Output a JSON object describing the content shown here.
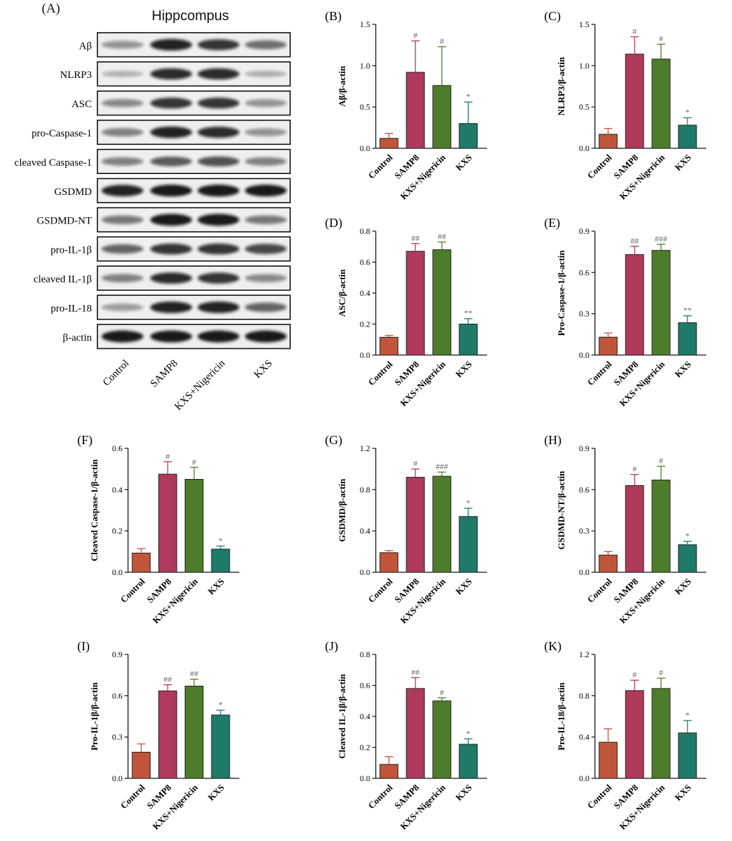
{
  "figure": {
    "blot_panel_label": "(A)",
    "blot_title": "Hippcompus",
    "blot_rows": [
      "Aβ",
      "NLRP3",
      "ASC",
      "pro-Caspase-1",
      "cleaved Caspase-1",
      "GSDMD",
      "GSDMD-NT",
      "pro-IL-1β",
      "cleaved IL-1β",
      "pro-IL-18",
      "β-actin"
    ],
    "blot_groups": [
      "Control",
      "SAMP8",
      "KXS+Nigericin",
      "KXS"
    ]
  },
  "colors": {
    "Control": "#c0553a",
    "SAMP8": "#b03a5b",
    "KXS+Nigericin": "#4d7c2a",
    "KXS": "#1f7a6a",
    "marker": "#666666"
  },
  "chart_data": [
    {
      "panel": "(B)",
      "type": "bar",
      "categories": [
        "Control",
        "SAMP8",
        "KXS+Nigericin",
        "KXS"
      ],
      "values": [
        0.12,
        0.92,
        0.76,
        0.3
      ],
      "errors": [
        0.06,
        0.38,
        0.47,
        0.26
      ],
      "markers": [
        "",
        "#",
        "#",
        "*"
      ],
      "ylabel": "Aβ/β-actin",
      "ylim": [
        0,
        1.5
      ],
      "yticks": [
        "0.0",
        "0.5",
        "1.0",
        "1.5"
      ]
    },
    {
      "panel": "(C)",
      "type": "bar",
      "categories": [
        "Control",
        "SAMP8",
        "KXS+Nigericin",
        "KXS"
      ],
      "values": [
        0.17,
        1.14,
        1.08,
        0.28
      ],
      "errors": [
        0.07,
        0.21,
        0.18,
        0.09
      ],
      "markers": [
        "",
        "#",
        "#",
        "*"
      ],
      "ylabel": "NLRP3/β-actin",
      "ylim": [
        0,
        1.5
      ],
      "yticks": [
        "0.0",
        "0.5",
        "1.0",
        "1.5"
      ]
    },
    {
      "panel": "(D)",
      "type": "bar",
      "categories": [
        "Control",
        "SAMP8",
        "KXS+Nigericin",
        "KXS"
      ],
      "values": [
        0.115,
        0.67,
        0.68,
        0.2
      ],
      "errors": [
        0.012,
        0.05,
        0.05,
        0.035
      ],
      "markers": [
        "",
        "##",
        "##",
        "**"
      ],
      "ylabel": "ASC/β-actin",
      "ylim": [
        0,
        0.8
      ],
      "yticks": [
        "0.0",
        "0.2",
        "0.4",
        "0.6",
        "0.8"
      ]
    },
    {
      "panel": "(E)",
      "type": "bar",
      "categories": [
        "Control",
        "SAMP8",
        "KXS+Nigericin",
        "KXS"
      ],
      "values": [
        0.13,
        0.73,
        0.76,
        0.235
      ],
      "errors": [
        0.03,
        0.06,
        0.045,
        0.05
      ],
      "markers": [
        "",
        "##",
        "###",
        "**"
      ],
      "ylabel": "Pro-Caspase-1/β-actin",
      "ylim": [
        0,
        0.9
      ],
      "yticks": [
        "0.0",
        "0.3",
        "0.6",
        "0.9"
      ]
    },
    {
      "panel": "(F)",
      "type": "bar",
      "categories": [
        "Control",
        "SAMP8",
        "KXS+Nigericin",
        "KXS"
      ],
      "values": [
        0.093,
        0.475,
        0.45,
        0.112
      ],
      "errors": [
        0.022,
        0.06,
        0.058,
        0.015
      ],
      "markers": [
        "",
        "#",
        "#",
        "*"
      ],
      "ylabel": "Cleaved Caspase-1/β-actin",
      "ylim": [
        0,
        0.6
      ],
      "yticks": [
        "0.0",
        "0.2",
        "0.4",
        "0.6"
      ]
    },
    {
      "panel": "(G)",
      "type": "bar",
      "categories": [
        "Control",
        "SAMP8",
        "KXS+Nigericin",
        "KXS"
      ],
      "values": [
        0.19,
        0.92,
        0.93,
        0.54
      ],
      "errors": [
        0.02,
        0.08,
        0.04,
        0.08
      ],
      "markers": [
        "",
        "#",
        "###",
        "*"
      ],
      "ylabel": "GSDMD/β-actin",
      "ylim": [
        0,
        1.2
      ],
      "yticks": [
        "0.0",
        "0.4",
        "0.8",
        "1.2"
      ]
    },
    {
      "panel": "(H)",
      "type": "bar",
      "categories": [
        "Control",
        "SAMP8",
        "KXS+Nigericin",
        "KXS"
      ],
      "values": [
        0.125,
        0.63,
        0.67,
        0.2
      ],
      "errors": [
        0.025,
        0.08,
        0.1,
        0.025
      ],
      "markers": [
        "",
        "#",
        "#",
        "*"
      ],
      "ylabel": "GSDMD-NT/β-actin",
      "ylim": [
        0,
        0.9
      ],
      "yticks": [
        "0.0",
        "0.3",
        "0.6",
        "0.9"
      ]
    },
    {
      "panel": "(I)",
      "type": "bar",
      "categories": [
        "Control",
        "SAMP8",
        "KXS+Nigericin",
        "KXS"
      ],
      "values": [
        0.19,
        0.635,
        0.67,
        0.46
      ],
      "errors": [
        0.06,
        0.045,
        0.05,
        0.035
      ],
      "markers": [
        "",
        "##",
        "##",
        "*"
      ],
      "ylabel": "Pro-IL-1β/β-actin",
      "ylim": [
        0,
        0.9
      ],
      "yticks": [
        "0.0",
        "0.3",
        "0.6",
        "0.9"
      ]
    },
    {
      "panel": "(J)",
      "type": "bar",
      "categories": [
        "Control",
        "SAMP8",
        "KXS+Nigericin",
        "KXS"
      ],
      "values": [
        0.09,
        0.58,
        0.5,
        0.22
      ],
      "errors": [
        0.05,
        0.07,
        0.02,
        0.035
      ],
      "markers": [
        "",
        "##",
        "#",
        "*"
      ],
      "ylabel": "Cleaved IL-1β/β-actin",
      "ylim": [
        0,
        0.8
      ],
      "yticks": [
        "0.0",
        "0.2",
        "0.4",
        "0.6",
        "0.8"
      ]
    },
    {
      "panel": "(K)",
      "type": "bar",
      "categories": [
        "Control",
        "SAMP8",
        "KXS+Nigericin",
        "KXS"
      ],
      "values": [
        0.35,
        0.85,
        0.87,
        0.44
      ],
      "errors": [
        0.13,
        0.1,
        0.1,
        0.12
      ],
      "markers": [
        "",
        "#",
        "#",
        "*"
      ],
      "ylabel": "Pro-IL-18/β-actin",
      "ylim": [
        0,
        1.2
      ],
      "yticks": [
        "0.0",
        "0.4",
        "0.8",
        "1.2"
      ]
    }
  ]
}
